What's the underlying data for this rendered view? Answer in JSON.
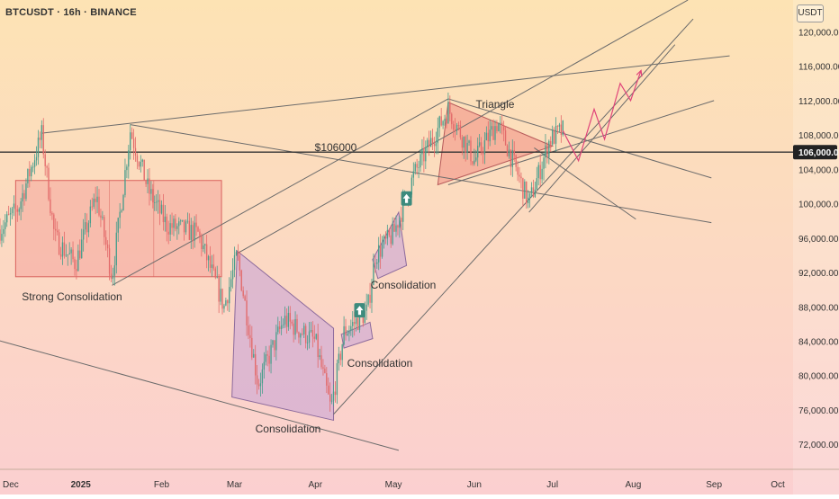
{
  "header": {
    "symbol_title": "BTCUSDT · 16h · BINANCE",
    "unit_label": "USDT"
  },
  "colors": {
    "bg_top": "#fde3b4",
    "bg_bottom": "#fbcfd0",
    "up_candle": "#4a9e8c",
    "down_candle": "#e36a6a",
    "trendline": "#6b6b6b",
    "rect_fill": "#f49a94",
    "rect_stroke": "#d9625e",
    "triangle_fill": "#f18e84",
    "purple_fill": "#c9a5d6",
    "projection": "#e0447a",
    "hline": "#333333",
    "arrow_badge": "#3d8b7d"
  },
  "chart_data": {
    "type": "candlestick",
    "symbol": "BTCUSDT",
    "timeframe": "16h",
    "exchange": "BINANCE",
    "x_tick_labels": [
      "Dec",
      "2025",
      "Feb",
      "Mar",
      "Apr",
      "May",
      "Jun",
      "Jul",
      "Aug",
      "Sep",
      "Oct"
    ],
    "y_tick_labels": [
      "120,000.00",
      "116,000.00",
      "112,000.00",
      "108,000.00",
      "104,000.00",
      "100,000.00",
      "96,000.00",
      "92,000.00",
      "88,000.00",
      "84,000.00",
      "80,000.00",
      "76,000.00",
      "72,000.00"
    ],
    "y_ticks": [
      120000,
      116000,
      112000,
      108000,
      104000,
      100000,
      96000,
      92000,
      88000,
      84000,
      80000,
      76000,
      72000
    ],
    "ylim": [
      69300,
      123700
    ],
    "x_range": [
      "2024-12-01",
      "2025-10-01"
    ],
    "current_price": 106000,
    "current_price_label": "106,000.00",
    "horizontal_level": {
      "price": 106000,
      "label": "$106000"
    },
    "annotations": [
      {
        "text": "Strong Consolidation"
      },
      {
        "text": "Consolidation"
      },
      {
        "text": "Consolidation"
      },
      {
        "text": "Consolidation"
      },
      {
        "text": "Triangle"
      }
    ],
    "price_path_anchors": [
      [
        "2024-12-01",
        97000
      ],
      [
        "2024-12-08",
        99500
      ],
      [
        "2024-12-17",
        108000
      ],
      [
        "2024-12-22",
        96000
      ],
      [
        "2024-12-30",
        93000
      ],
      [
        "2025-01-07",
        101000
      ],
      [
        "2025-01-13",
        91500
      ],
      [
        "2025-01-20",
        108500
      ],
      [
        "2025-01-27",
        101500
      ],
      [
        "2025-02-03",
        97500
      ],
      [
        "2025-02-15",
        96500
      ],
      [
        "2025-02-25",
        88000
      ],
      [
        "2025-03-02",
        94000
      ],
      [
        "2025-03-10",
        79000
      ],
      [
        "2025-03-20",
        86500
      ],
      [
        "2025-04-01",
        84000
      ],
      [
        "2025-04-07",
        76000
      ],
      [
        "2025-04-12",
        85000
      ],
      [
        "2025-04-21",
        87500
      ],
      [
        "2025-04-24",
        94000
      ],
      [
        "2025-05-01",
        96500
      ],
      [
        "2025-05-09",
        103500
      ],
      [
        "2025-05-22",
        111000
      ],
      [
        "2025-06-01",
        105000
      ],
      [
        "2025-06-10",
        109500
      ],
      [
        "2025-06-22",
        100000
      ],
      [
        "2025-06-30",
        107500
      ],
      [
        "2025-07-05",
        108500
      ]
    ],
    "projection_path": [
      [
        "2025-07-05",
        108500
      ],
      [
        "2025-07-11",
        105000
      ],
      [
        "2025-07-17",
        111000
      ],
      [
        "2025-07-21",
        107500
      ],
      [
        "2025-07-27",
        114000
      ],
      [
        "2025-07-31",
        112000
      ],
      [
        "2025-08-04",
        115500
      ]
    ],
    "trendlines": [
      {
        "from": [
          "2024-12-17",
          108200
        ],
        "to": [
          "2025-09-07",
          117200
        ]
      },
      {
        "from": [
          "2025-01-20",
          109200
        ],
        "to": [
          "2025-08-31",
          97800
        ]
      },
      {
        "from": [
          "2024-11-23",
          84700
        ],
        "to": [
          "2025-05-03",
          71300
        ]
      },
      {
        "from": [
          "2025-03-02",
          94200
        ],
        "to": [
          "2025-08-22",
          123700
        ]
      },
      {
        "from": [
          "2025-01-13",
          90500
        ],
        "to": [
          "2025-05-22",
          112200
        ]
      },
      {
        "from": [
          "2025-05-22",
          102200
        ],
        "to": [
          "2025-09-01",
          112000
        ]
      },
      {
        "from": [
          "2025-04-08",
          75500
        ],
        "to": [
          "2025-08-24",
          121500
        ]
      },
      {
        "from": [
          "2025-06-22",
          99000
        ],
        "to": [
          "2025-08-17",
          118500
        ]
      },
      {
        "from": [
          "2025-05-22",
          112200
        ],
        "to": [
          "2025-08-31",
          103000
        ]
      },
      {
        "from": [
          "2025-06-24",
          106500
        ],
        "to": [
          "2025-08-02",
          98200
        ]
      }
    ],
    "zones": [
      {
        "kind": "rect",
        "from": [
          "2024-12-07",
          102700
        ],
        "to": [
          "2025-02-24",
          91500
        ]
      },
      {
        "kind": "triangle",
        "points": [
          [
            "2025-05-22",
            111800
          ],
          [
            "2025-07-01",
            106700
          ],
          [
            "2025-05-18",
            102200
          ]
        ]
      },
      {
        "kind": "purple",
        "points": [
          [
            "2025-03-02",
            94500
          ],
          [
            "2025-04-08",
            85500
          ],
          [
            "2025-04-08",
            74800
          ],
          [
            "2025-02-28",
            77500
          ]
        ]
      },
      {
        "kind": "purple",
        "points": [
          [
            "2025-04-11",
            84800
          ],
          [
            "2025-04-22",
            86200
          ],
          [
            "2025-04-23",
            84300
          ],
          [
            "2025-04-12",
            83200
          ]
        ]
      },
      {
        "kind": "purple",
        "points": [
          [
            "2025-04-23",
            93500
          ],
          [
            "2025-05-03",
            99000
          ],
          [
            "2025-05-06",
            92800
          ],
          [
            "2025-04-25",
            91300
          ]
        ]
      }
    ],
    "signal_arrows": [
      {
        "date": "2025-04-18",
        "price": 87600
      },
      {
        "date": "2025-05-06",
        "price": 100600
      }
    ]
  }
}
